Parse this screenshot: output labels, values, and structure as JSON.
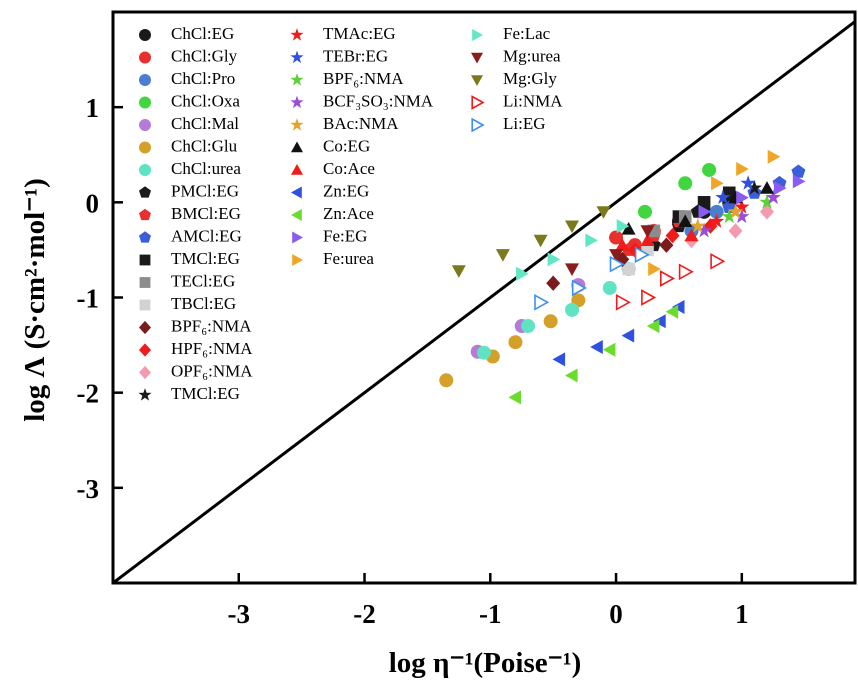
{
  "chart_data": {
    "type": "scatter",
    "x_label": "log η⁻¹(Poise⁻¹)",
    "y_label": "log Λ (S·cm²·mol⁻¹)",
    "xlim": [
      -4,
      1.9
    ],
    "ylim": [
      -4,
      2
    ],
    "xticks": [
      -3,
      -2,
      -1,
      0,
      1
    ],
    "yticks": [
      -3,
      -2,
      -1,
      0,
      1
    ],
    "diagonal": true,
    "series": [
      {
        "name": "ChCl:EG",
        "color": "#1a1a1a",
        "marker": "circle",
        "x": [
          0.5,
          0.7,
          0.9
        ],
        "y": [
          -0.2,
          -0.1,
          0.0
        ]
      },
      {
        "name": "ChCl:Gly",
        "color": "#e8302f",
        "marker": "circle",
        "x": [
          0.0,
          0.15,
          0.3
        ],
        "y": [
          -0.37,
          -0.45,
          -0.3
        ]
      },
      {
        "name": "ChCl:Pro",
        "color": "#4a7fcf",
        "marker": "circle",
        "x": [
          0.6,
          0.8
        ],
        "y": [
          -0.3,
          -0.1
        ]
      },
      {
        "name": "ChCl:Oxa",
        "color": "#3fd63f",
        "marker": "circle",
        "x": [
          0.23,
          0.55,
          0.74
        ],
        "y": [
          -0.1,
          0.2,
          0.34
        ]
      },
      {
        "name": "ChCl:Mal",
        "color": "#b57bd6",
        "marker": "circle",
        "x": [
          -1.1,
          -0.75,
          -0.3
        ],
        "y": [
          -1.57,
          -1.3,
          -0.87
        ]
      },
      {
        "name": "ChCl:Glu",
        "color": "#d4a02a",
        "marker": "circle",
        "x": [
          -1.35,
          -0.98,
          -0.8,
          -0.52,
          -0.3
        ],
        "y": [
          -1.87,
          -1.62,
          -1.47,
          -1.25,
          -1.03
        ]
      },
      {
        "name": "ChCl:urea",
        "color": "#5fe3c3",
        "marker": "circle",
        "x": [
          -1.05,
          -0.7,
          -0.35,
          -0.05,
          0.1
        ],
        "y": [
          -1.58,
          -1.3,
          -1.13,
          -0.9,
          -0.7
        ]
      },
      {
        "name": "PMCl:EG",
        "color": "#1a1a1a",
        "marker": "pentagon",
        "x": [
          0.3,
          0.5,
          0.65
        ],
        "y": [
          -0.45,
          -0.25,
          -0.1
        ]
      },
      {
        "name": "BMCl:EG",
        "color": "#e8302f",
        "marker": "pentagon",
        "x": [
          0.1,
          0.3,
          0.5
        ],
        "y": [
          -0.5,
          -0.35,
          -0.2
        ]
      },
      {
        "name": "AMCl:EG",
        "color": "#3b5fd9",
        "marker": "pentagon",
        "x": [
          0.9,
          1.1,
          1.3,
          1.45
        ],
        "y": [
          -0.05,
          0.1,
          0.2,
          0.32
        ]
      },
      {
        "name": "TMCl:EG",
        "color": "#1a1a1a",
        "marker": "square",
        "x": [
          0.5,
          0.7,
          0.9
        ],
        "y": [
          -0.15,
          0.0,
          0.1
        ]
      },
      {
        "name": "TECl:EG",
        "color": "#8c8c8c",
        "marker": "square",
        "x": [
          0.3,
          0.55
        ],
        "y": [
          -0.3,
          -0.15
        ]
      },
      {
        "name": "TBCl:EG",
        "color": "#d2d2d2",
        "marker": "square",
        "x": [
          0.1,
          0.25
        ],
        "y": [
          -0.7,
          -0.5
        ]
      },
      {
        "name": "BPF₆:NMA",
        "color": "#7a1c1c",
        "marker": "diamond",
        "x": [
          -0.5,
          0.05,
          0.4
        ],
        "y": [
          -0.85,
          -0.6,
          -0.45
        ]
      },
      {
        "name": "HPF₆:NMA",
        "color": "#f01c1c",
        "marker": "diamond",
        "x": [
          0.15,
          0.45,
          0.75
        ],
        "y": [
          -0.5,
          -0.35,
          -0.25
        ]
      },
      {
        "name": "OPF₆:NMA",
        "color": "#f29ab0",
        "marker": "diamond",
        "x": [
          0.6,
          0.95,
          1.2
        ],
        "y": [
          -0.4,
          -0.3,
          -0.1
        ]
      },
      {
        "name": "TMCl:EG",
        "color": "#1a1a1a",
        "marker": "star",
        "x": [
          0.9,
          1.1
        ],
        "y": [
          0.05,
          0.15
        ]
      },
      {
        "name": "TMAc:EG",
        "color": "#f01c1c",
        "marker": "star",
        "x": [
          0.8,
          1.0
        ],
        "y": [
          -0.2,
          -0.05
        ]
      },
      {
        "name": "TEBr:EG",
        "color": "#2f50e0",
        "marker": "star",
        "x": [
          0.85,
          1.05
        ],
        "y": [
          0.05,
          0.2
        ]
      },
      {
        "name": "BPF₆:NMA",
        "color": "#5ed13a",
        "marker": "star",
        "x": [
          0.9,
          1.2
        ],
        "y": [
          -0.15,
          0.0
        ]
      },
      {
        "name": "BCF₃SO₃:NMA",
        "color": "#9a4ed6",
        "marker": "star",
        "x": [
          0.7,
          1.0,
          1.25
        ],
        "y": [
          -0.3,
          -0.15,
          0.05
        ]
      },
      {
        "name": "BAc:NMA",
        "color": "#e0a52a",
        "marker": "star",
        "x": [
          0.65,
          0.95
        ],
        "y": [
          -0.25,
          -0.1
        ]
      },
      {
        "name": "Co:EG",
        "color": "#111111",
        "marker": "triangle-up",
        "x": [
          0.1,
          0.55,
          0.95,
          1.2
        ],
        "y": [
          -0.28,
          -0.2,
          0.05,
          0.15
        ]
      },
      {
        "name": "Co:Ace",
        "color": "#f01c1c",
        "marker": "triangle-up",
        "x": [
          0.05,
          0.25,
          0.6
        ],
        "y": [
          -0.45,
          -0.4,
          -0.35
        ]
      },
      {
        "name": "Zn:EG",
        "color": "#2f50e0",
        "marker": "triangle-left",
        "x": [
          -0.45,
          -0.15,
          0.1,
          0.35,
          0.5
        ],
        "y": [
          -1.65,
          -1.52,
          -1.4,
          -1.25,
          -1.1
        ]
      },
      {
        "name": "Zn:Ace",
        "color": "#6bdc2c",
        "marker": "triangle-left",
        "x": [
          -0.8,
          -0.35,
          -0.05,
          0.3,
          0.45
        ],
        "y": [
          -2.05,
          -1.82,
          -1.55,
          -1.3,
          -1.15
        ]
      },
      {
        "name": "Fe:EG",
        "color": "#8a5cf0",
        "marker": "triangle-right",
        "x": [
          0.7,
          1.0,
          1.3,
          1.45
        ],
        "y": [
          -0.1,
          0.05,
          0.15,
          0.22
        ]
      },
      {
        "name": "Fe:urea",
        "color": "#f0a524",
        "marker": "triangle-right",
        "x": [
          0.3,
          0.8,
          1.0,
          1.25
        ],
        "y": [
          -0.7,
          0.2,
          0.35,
          0.48
        ]
      },
      {
        "name": "Fe:Lac",
        "color": "#5fe8c3",
        "marker": "triangle-right",
        "x": [
          -0.75,
          -0.5,
          -0.2,
          0.05
        ],
        "y": [
          -0.75,
          -0.6,
          -0.4,
          -0.25
        ]
      },
      {
        "name": "Mg:urea",
        "color": "#8a1c1c",
        "marker": "triangle-down",
        "x": [
          -0.35,
          0.0,
          0.25
        ],
        "y": [
          -0.7,
          -0.55,
          -0.3
        ]
      },
      {
        "name": "Mg:Gly",
        "color": "#7a7a1c",
        "marker": "triangle-down",
        "x": [
          -1.25,
          -0.9,
          -0.6,
          -0.35,
          -0.1
        ],
        "y": [
          -0.72,
          -0.55,
          -0.4,
          -0.25,
          -0.1
        ]
      },
      {
        "name": "Li:NMA",
        "color": "#f01c1c",
        "marker": "open-triangle-right",
        "x": [
          0.05,
          0.25,
          0.4,
          0.55,
          0.8
        ],
        "y": [
          -1.05,
          -1.0,
          -0.8,
          -0.73,
          -0.62
        ]
      },
      {
        "name": "Li:EG",
        "color": "#3b8ff0",
        "marker": "open-triangle-right",
        "x": [
          -0.6,
          -0.3,
          0.0,
          0.2
        ],
        "y": [
          -1.05,
          -0.9,
          -0.65,
          -0.55
        ]
      }
    ]
  }
}
